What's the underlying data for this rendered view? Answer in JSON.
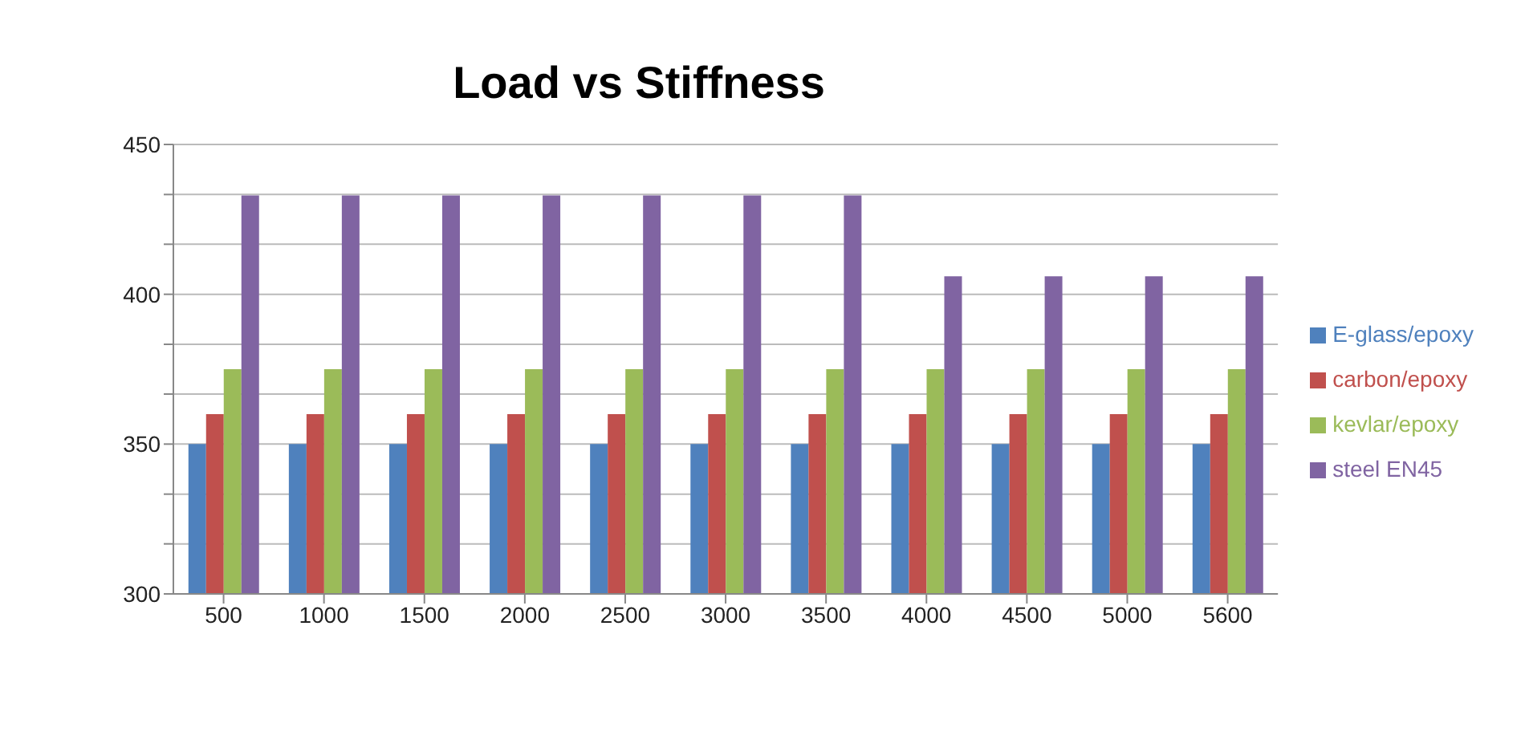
{
  "chart_data": {
    "type": "bar",
    "title": "Load vs Stiffness",
    "categories": [
      "500",
      "1000",
      "1500",
      "2000",
      "2500",
      "3000",
      "3500",
      "4000",
      "4500",
      "5000",
      "5600"
    ],
    "series": [
      {
        "name": "E-glass/epoxy",
        "color": "#4f81bd",
        "values": [
          350,
          350,
          350,
          350,
          350,
          350,
          350,
          350,
          350,
          350,
          350
        ]
      },
      {
        "name": "carbon/epoxy",
        "color": "#c0504d",
        "values": [
          360,
          360,
          360,
          360,
          360,
          360,
          360,
          360,
          360,
          360,
          360
        ]
      },
      {
        "name": "kevlar/epoxy",
        "color": "#9bbb59",
        "values": [
          375,
          375,
          375,
          375,
          375,
          375,
          375,
          375,
          375,
          375,
          375
        ]
      },
      {
        "name": "steel EN45",
        "color": "#8064a2",
        "values": [
          433,
          433,
          433,
          433,
          433,
          433,
          433,
          406,
          406,
          406,
          406
        ]
      }
    ],
    "ylim": [
      300,
      450
    ],
    "yticks": [
      300,
      {
        "value": 316.7,
        "label": null
      },
      {
        "value": 333.3,
        "label": null
      },
      350,
      {
        "value": 366.7,
        "label": null
      },
      {
        "value": 383.3,
        "label": null
      },
      400,
      {
        "value": 416.7,
        "label": null
      },
      {
        "value": 433.3,
        "label": null
      },
      450
    ],
    "grid": "y",
    "legend": "right"
  }
}
